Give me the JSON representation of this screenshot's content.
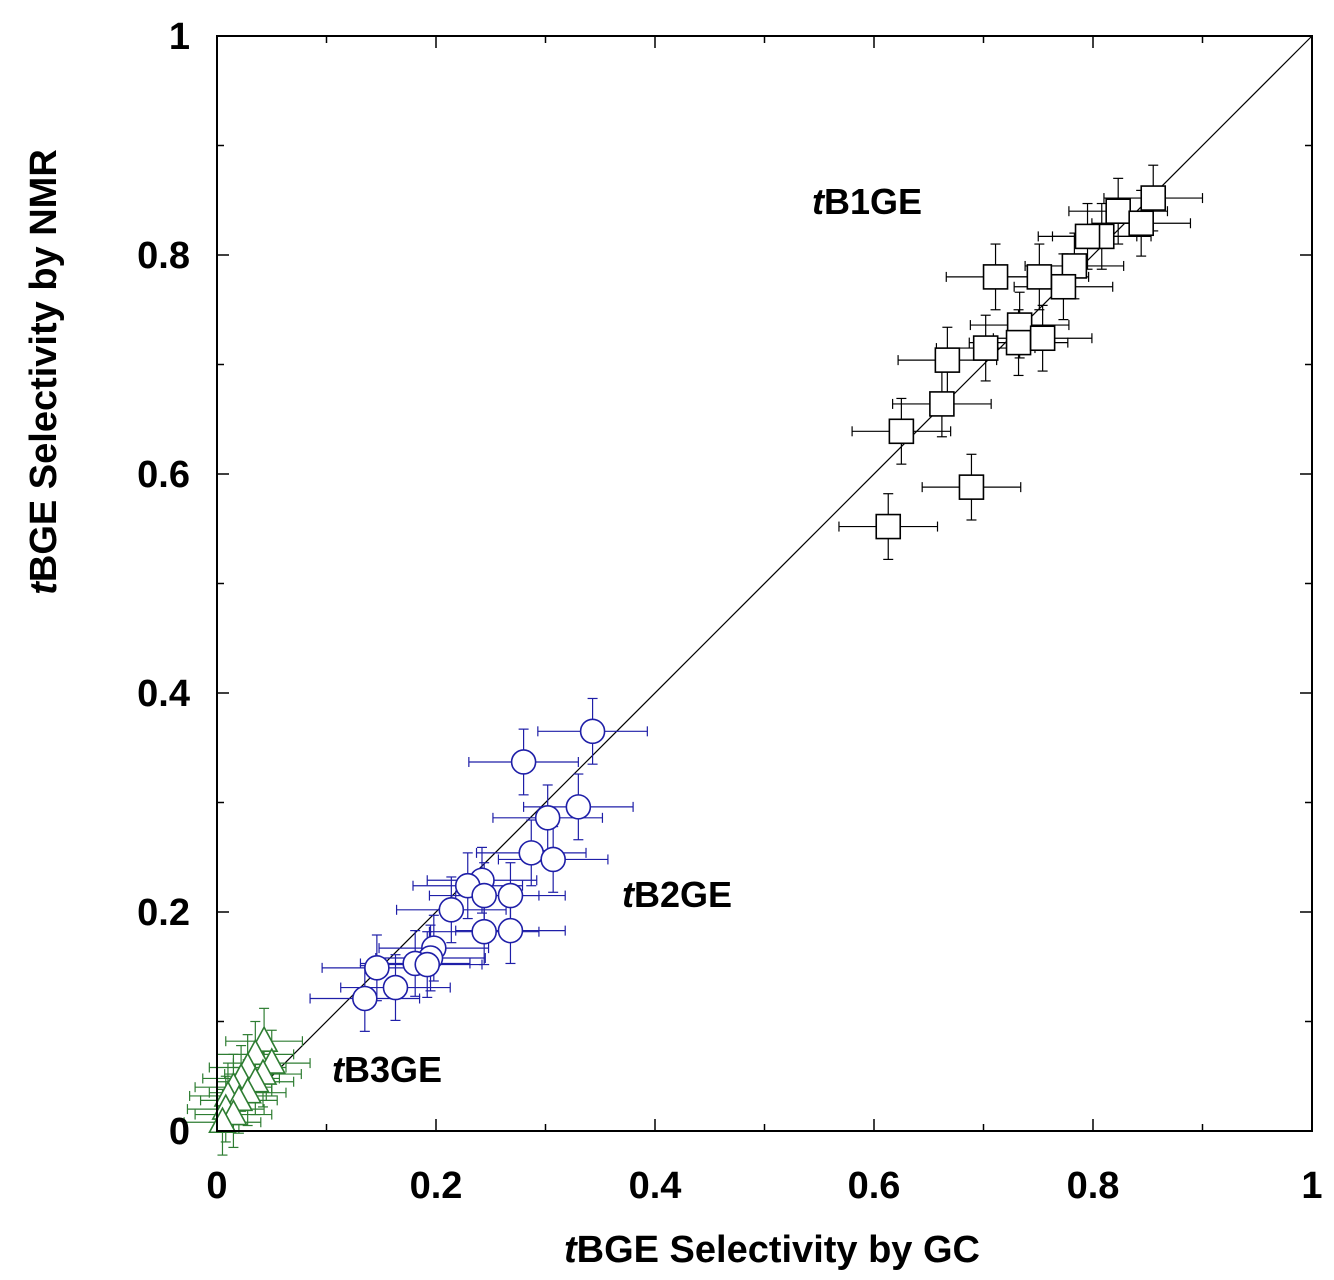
{
  "chart_data": {
    "type": "scatter",
    "title": "",
    "xlabel": {
      "italic_prefix": "t",
      "text": "BGE Selectivity by GC"
    },
    "ylabel": {
      "italic_prefix": "t",
      "text": "BGE Selectivity by NMR"
    },
    "xlim": [
      0,
      1
    ],
    "ylim": [
      0,
      1
    ],
    "x_ticks": [
      0,
      0.2,
      0.4,
      0.6,
      0.8,
      1
    ],
    "y_ticks": [
      0,
      0.2,
      0.4,
      0.6,
      0.8,
      1
    ],
    "x_tick_labels": [
      "0",
      "0.2",
      "0.4",
      "0.6",
      "0.8",
      "1"
    ],
    "y_tick_labels": [
      "0",
      "0.2",
      "0.4",
      "0.6",
      "0.8",
      "1"
    ],
    "grid": false,
    "reference_line": {
      "label": "y = x",
      "from": [
        0,
        0
      ],
      "to": [
        1,
        1
      ]
    },
    "series": [
      {
        "name": "tB1GE",
        "label_italic_prefix": "t",
        "label_text": "B1GE",
        "marker": "square",
        "color": "#000000",
        "x_error": 0.045,
        "y_error": 0.03,
        "points": [
          [
            0.855,
            0.852
          ],
          [
            0.823,
            0.84
          ],
          [
            0.844,
            0.829
          ],
          [
            0.808,
            0.817
          ],
          [
            0.795,
            0.817
          ],
          [
            0.783,
            0.79
          ],
          [
            0.773,
            0.771
          ],
          [
            0.751,
            0.78
          ],
          [
            0.711,
            0.78
          ],
          [
            0.733,
            0.736
          ],
          [
            0.732,
            0.72
          ],
          [
            0.754,
            0.724
          ],
          [
            0.702,
            0.715
          ],
          [
            0.667,
            0.704
          ],
          [
            0.662,
            0.664
          ],
          [
            0.625,
            0.639
          ],
          [
            0.689,
            0.588
          ],
          [
            0.613,
            0.552
          ]
        ]
      },
      {
        "name": "tB2GE",
        "label_italic_prefix": "t",
        "label_text": "B2GE",
        "marker": "circle",
        "color": "#1f1fa8",
        "x_error": 0.05,
        "y_error": 0.03,
        "points": [
          [
            0.343,
            0.365
          ],
          [
            0.28,
            0.337
          ],
          [
            0.33,
            0.296
          ],
          [
            0.302,
            0.286
          ],
          [
            0.287,
            0.254
          ],
          [
            0.307,
            0.248
          ],
          [
            0.242,
            0.229
          ],
          [
            0.229,
            0.224
          ],
          [
            0.244,
            0.215
          ],
          [
            0.268,
            0.215
          ],
          [
            0.214,
            0.202
          ],
          [
            0.244,
            0.182
          ],
          [
            0.268,
            0.183
          ],
          [
            0.198,
            0.167
          ],
          [
            0.195,
            0.158
          ],
          [
            0.181,
            0.153
          ],
          [
            0.192,
            0.152
          ],
          [
            0.146,
            0.149
          ],
          [
            0.163,
            0.131
          ],
          [
            0.135,
            0.121
          ]
        ]
      },
      {
        "name": "tB3GE",
        "label_italic_prefix": "t",
        "label_text": "B3GE",
        "marker": "triangle",
        "color": "#2e7d32",
        "x_error": 0.035,
        "y_error": 0.03,
        "points": [
          [
            0.043,
            0.082
          ],
          [
            0.035,
            0.07
          ],
          [
            0.05,
            0.062
          ],
          [
            0.028,
            0.058
          ],
          [
            0.042,
            0.052
          ],
          [
            0.022,
            0.048
          ],
          [
            0.035,
            0.045
          ],
          [
            0.015,
            0.04
          ],
          [
            0.028,
            0.035
          ],
          [
            0.01,
            0.032
          ],
          [
            0.02,
            0.028
          ],
          [
            0.008,
            0.02
          ],
          [
            0.015,
            0.015
          ],
          [
            0.005,
            0.008
          ]
        ]
      }
    ]
  }
}
